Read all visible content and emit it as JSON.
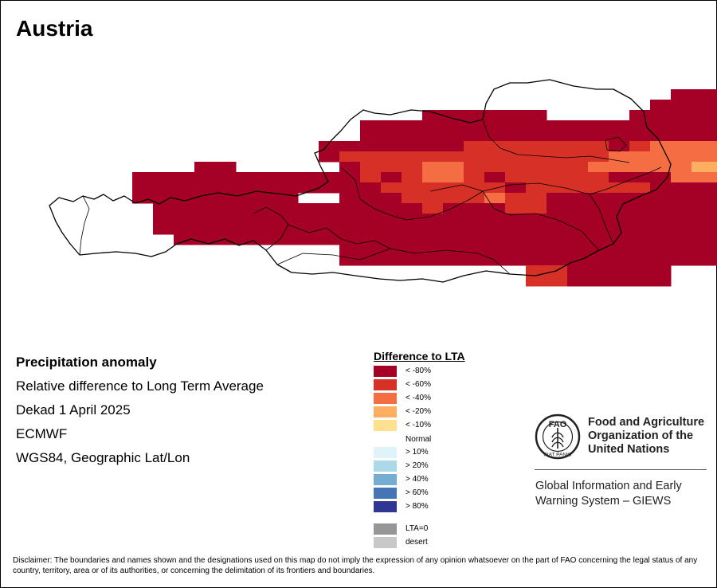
{
  "title": "Austria",
  "info_lines": [
    "Precipitation anomaly",
    "Relative difference to Long Term Average",
    "Dekad 1 April 2025",
    "ECMWF",
    "WGS84, Geographic Lat/Lon"
  ],
  "legend": {
    "title": "Difference to LTA",
    "normal_label": "Normal",
    "items": [
      {
        "label": "< -80%",
        "color": "#a50026"
      },
      {
        "label": "< -60%",
        "color": "#d73027"
      },
      {
        "label": "< -40%",
        "color": "#f46d43"
      },
      {
        "label": "< -20%",
        "color": "#fdae61"
      },
      {
        "label": "< -10%",
        "color": "#fee090"
      },
      {
        "label": "> 10%",
        "color": "#e0f3f8"
      },
      {
        "label": "> 20%",
        "color": "#abd9e9"
      },
      {
        "label": "> 40%",
        "color": "#74add1"
      },
      {
        "label": "> 60%",
        "color": "#4575b4"
      },
      {
        "label": "> 80%",
        "color": "#313695"
      },
      {
        "label": "LTA=0",
        "color": "#969696"
      },
      {
        "label": "desert",
        "color": "#c8c8c8"
      }
    ]
  },
  "organization": {
    "name_lines": [
      "Food and Agriculture",
      "Organization of the",
      "United Nations"
    ],
    "logo_letters": "FAO",
    "logo_motto": "FIAT PANIS",
    "system_lines": [
      "Global Information and Early",
      "Warning System – GIEWS"
    ]
  },
  "disclaimer": "Disclaimer: The boundaries and names shown and the designations used on this map do not imply the expression of any opinion whatsoever on the part of FAO concerning the legal status of any country, territory, area or of its authorities, or concerning the delimitation of its frontiers and boundaries.",
  "anomaly_grid": {
    "class_codes": {
      "0": "no data",
      "1": "< -80%",
      "2": "< -60%",
      "3": "< -40%",
      "4": "< -20%",
      "5": "< -10%"
    },
    "rows": [
      "00000000000000000000000000000011100000100",
      "00000000000000000000000000000111111100110",
      "00000000000000000011111100001111111111150",
      "00000000000000011111111111111111111111111",
      "00000000000000011111111111111111155212211",
      "00000000000001111111222222212333334442111",
      "00000000000001222222222222233333333222222",
      "00000001100000122233222222333334442222222",
      "00001111111111121233212222211133341222220",
      "00001111111111112222221222222111112222222",
      "00001111111100111222232211111111111111000",
      "00000111111111111121112211111111111111000",
      "00000111111111111111111111111111111110000",
      "00000111111111111111111111111111111110000",
      "00000011111111111111111111111111111000000",
      "00000000000000111111111111111111111000000",
      "00000000000000111111111111111111100000000",
      "00000000000000000000000221111100000000000",
      "00000000000000000000000221111100000000000"
    ]
  }
}
